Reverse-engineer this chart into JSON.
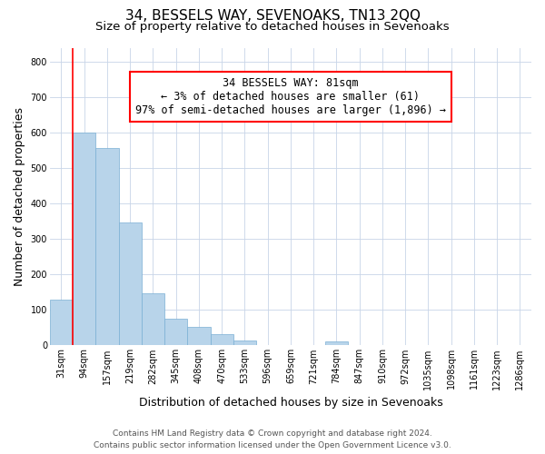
{
  "title": "34, BESSELS WAY, SEVENOAKS, TN13 2QQ",
  "subtitle": "Size of property relative to detached houses in Sevenoaks",
  "xlabel": "Distribution of detached houses by size in Sevenoaks",
  "ylabel": "Number of detached properties",
  "bar_labels": [
    "31sqm",
    "94sqm",
    "157sqm",
    "219sqm",
    "282sqm",
    "345sqm",
    "408sqm",
    "470sqm",
    "533sqm",
    "596sqm",
    "659sqm",
    "721sqm",
    "784sqm",
    "847sqm",
    "910sqm",
    "972sqm",
    "1035sqm",
    "1098sqm",
    "1161sqm",
    "1223sqm",
    "1286sqm"
  ],
  "bar_values": [
    128,
    600,
    557,
    348,
    148,
    75,
    52,
    33,
    15,
    0,
    0,
    0,
    10,
    0,
    0,
    0,
    0,
    0,
    0,
    0,
    0
  ],
  "bar_color": "#b8d4ea",
  "bar_edge_color": "#7aafd4",
  "annotation_text_line1": "34 BESSELS WAY: 81sqm",
  "annotation_text_line2": "← 3% of detached houses are smaller (61)",
  "annotation_text_line3": "97% of semi-detached houses are larger (1,896) →",
  "red_line_x": 0.5,
  "ylim": [
    0,
    840
  ],
  "yticks": [
    0,
    100,
    200,
    300,
    400,
    500,
    600,
    700,
    800
  ],
  "footer_line1": "Contains HM Land Registry data © Crown copyright and database right 2024.",
  "footer_line2": "Contains public sector information licensed under the Open Government Licence v3.0.",
  "bg_color": "#ffffff",
  "grid_color": "#c8d4e8",
  "title_fontsize": 11,
  "subtitle_fontsize": 9.5,
  "axis_label_fontsize": 9,
  "tick_fontsize": 7,
  "annotation_fontsize": 8.5,
  "footer_fontsize": 6.5
}
